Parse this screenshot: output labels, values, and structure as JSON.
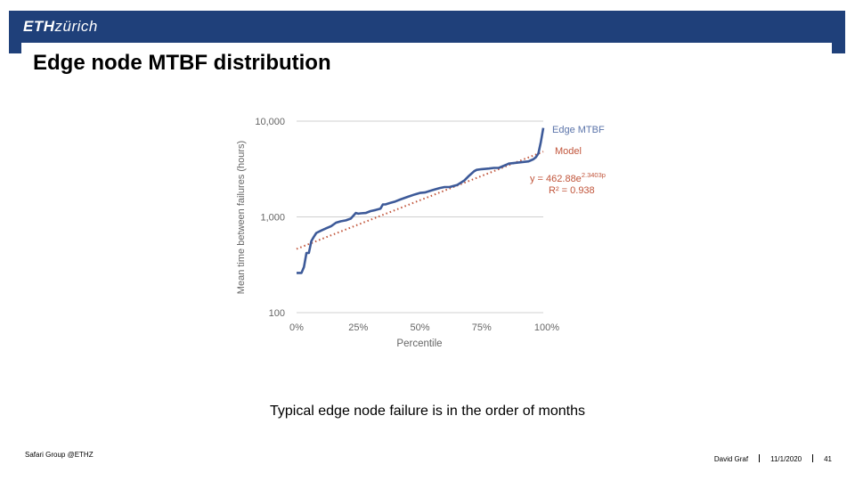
{
  "header": {
    "logo_eth": "ETH",
    "logo_zurich": "zürich"
  },
  "slide": {
    "title": "Edge node MTBF distribution",
    "caption": "Typical edge node failure is in the order of months"
  },
  "footer": {
    "left": "Safari Group @ETHZ",
    "author": "David Graf",
    "date": "11/1/2020",
    "page": "41"
  },
  "colors": {
    "header": "#1f407a",
    "series": "#3d5a99",
    "model": "#c1553b",
    "grid": "#d0d0d0"
  },
  "chart_data": {
    "type": "line",
    "ylabel": "Mean time between failures (hours)",
    "xlabel": "Percentile",
    "y_scale": "log",
    "ylim": [
      100,
      10000
    ],
    "xlim": [
      0,
      100
    ],
    "yticks": [
      100,
      1000,
      10000
    ],
    "ytick_labels": [
      "100",
      "1,000",
      "10,000"
    ],
    "xticks": [
      0,
      25,
      50,
      75,
      100
    ],
    "xtick_labels": [
      "0%",
      "25%",
      "50%",
      "75%",
      "100%"
    ],
    "grid": true,
    "legend_position": "right",
    "series": [
      {
        "name": "Edge MTBF",
        "x": [
          0,
          2,
          3,
          4,
          5,
          6,
          7,
          8,
          10,
          12,
          14,
          16,
          18,
          20,
          22,
          24,
          25,
          26,
          28,
          30,
          32,
          34,
          35,
          36,
          38,
          40,
          42,
          45,
          48,
          50,
          52,
          55,
          58,
          60,
          62,
          65,
          68,
          70,
          72,
          73,
          75,
          78,
          80,
          82,
          85,
          86,
          88,
          90,
          92,
          94,
          95,
          96,
          97,
          98,
          99,
          100
        ],
        "y": [
          260,
          260,
          300,
          420,
          420,
          560,
          620,
          680,
          720,
          760,
          800,
          870,
          900,
          920,
          960,
          1100,
          1080,
          1090,
          1100,
          1150,
          1180,
          1220,
          1350,
          1350,
          1400,
          1450,
          1520,
          1620,
          1720,
          1780,
          1800,
          1900,
          2000,
          2050,
          2050,
          2150,
          2400,
          2700,
          3000,
          3100,
          3150,
          3200,
          3250,
          3250,
          3500,
          3600,
          3650,
          3700,
          3750,
          3800,
          3900,
          4000,
          4200,
          4600,
          6000,
          8500
        ]
      },
      {
        "name": "Model",
        "equation": "y = 462.88e",
        "exponent": "2.3403p",
        "r2": "R² = 0.938"
      }
    ]
  }
}
